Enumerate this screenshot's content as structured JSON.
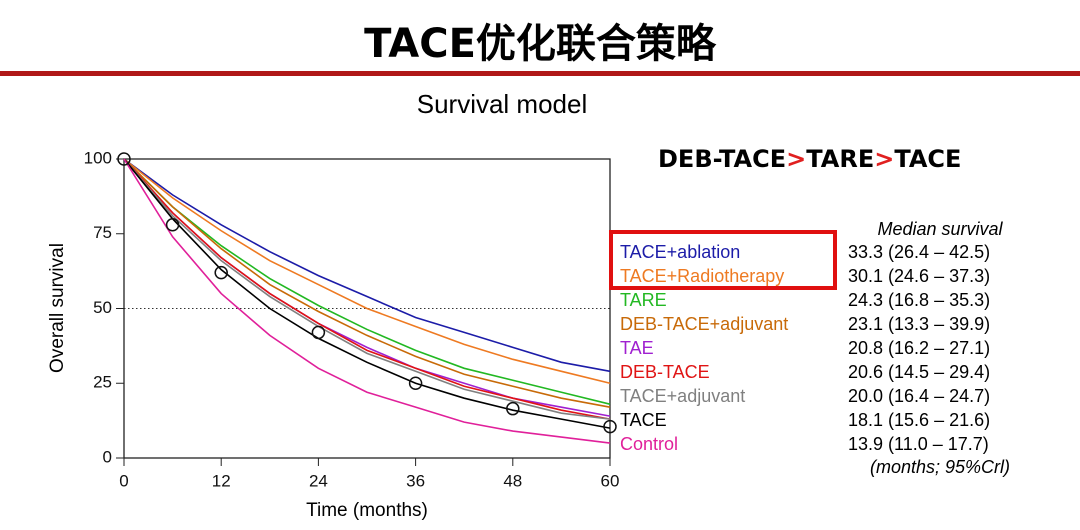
{
  "chart_data": {
    "type": "line",
    "title": "TACE优化联合策略",
    "subtitle": "Survival model",
    "annotation": [
      "DEB-TACE",
      ">",
      "TARE",
      ">",
      "TACE"
    ],
    "xlabel": "Time (months)",
    "ylabel": "Overall survival",
    "xlim": [
      0,
      60
    ],
    "xticks": [
      0,
      12,
      24,
      36,
      48,
      60
    ],
    "ylim": [
      0,
      100
    ],
    "yticks": [
      0,
      25,
      50,
      75,
      100
    ],
    "reference_line": 50,
    "median_header": "Median survival",
    "footnote": "(months; 95%Crl)",
    "x": [
      0,
      6,
      12,
      18,
      24,
      30,
      36,
      42,
      48,
      54,
      60
    ],
    "series": [
      {
        "name": "TACE+ablation",
        "color": "#1c1ca8",
        "median": "33.3 (26.4 – 42.5)",
        "values": [
          100,
          88,
          78,
          69,
          61,
          54,
          47,
          42,
          37,
          32,
          29
        ]
      },
      {
        "name": "TACE+Radiotherapy",
        "color": "#ee7a22",
        "median": "30.1 (24.6 – 37.3)",
        "values": [
          100,
          87,
          76,
          66,
          58,
          50,
          44,
          38,
          33,
          29,
          25
        ]
      },
      {
        "name": "TARE",
        "color": "#22b822",
        "median": "24.3 (16.8 – 35.3)",
        "values": [
          100,
          84,
          71,
          60,
          51,
          43,
          36,
          30,
          26,
          22,
          18
        ]
      },
      {
        "name": "DEB-TACE+adjuvant",
        "color": "#c86a08",
        "median": "23.1 (13.3 – 39.9)",
        "values": [
          100,
          84,
          70,
          58,
          49,
          41,
          34,
          28,
          24,
          20,
          17
        ]
      },
      {
        "name": "TAE",
        "color": "#a020d0",
        "median": "20.8 (16.2 – 27.1)",
        "values": [
          100,
          82,
          67,
          55,
          45,
          37,
          30,
          25,
          20,
          17,
          14
        ]
      },
      {
        "name": "DEB-TACE",
        "color": "#e01414",
        "median": "20.6 (14.5 – 29.4)",
        "values": [
          100,
          82,
          67,
          55,
          45,
          36,
          30,
          24,
          20,
          16,
          13
        ]
      },
      {
        "name": "TACE+adjuvant",
        "color": "#808080",
        "median": "20.0 (16.4 – 24.7)",
        "values": [
          100,
          81,
          66,
          54,
          44,
          35,
          29,
          23,
          19,
          15,
          13
        ]
      },
      {
        "name": "TACE",
        "color": "#000000",
        "median": "18.1 (15.6 – 21.6)",
        "values": [
          100,
          80,
          63,
          50,
          40,
          32,
          25,
          20,
          16,
          13,
          10
        ]
      },
      {
        "name": "Control",
        "color": "#e0209a",
        "median": "13.9 (11.0 – 17.7)",
        "values": [
          100,
          74,
          55,
          41,
          30,
          22,
          17,
          12,
          9,
          7,
          5
        ]
      }
    ],
    "observed": {
      "x": [
        0,
        6,
        12,
        24,
        36,
        48,
        60
      ],
      "y": [
        100,
        78,
        62,
        42,
        25,
        16.5,
        10.5
      ]
    }
  }
}
